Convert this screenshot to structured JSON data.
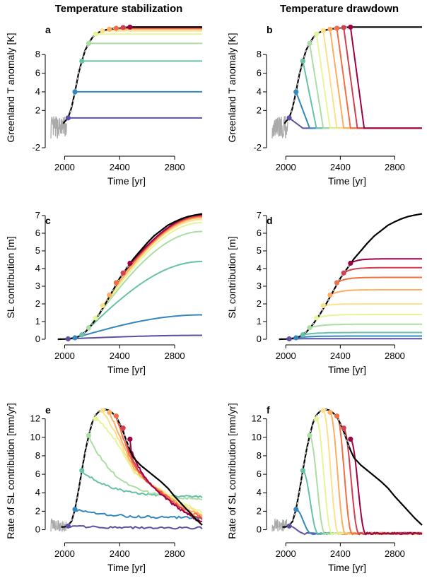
{
  "figure": {
    "col_titles": [
      "Temperature stabilization",
      "Temperature drawdown"
    ],
    "scenario_colors": [
      "#5E4FA2",
      "#3288BD",
      "#66C2A5",
      "#ABDDA4",
      "#E6F598",
      "#FEE08B",
      "#FDAE61",
      "#F46D43",
      "#D53E4F",
      "#9E0142"
    ],
    "baseline_color": "#000000",
    "historical_color": "#AAAAAA",
    "scenario_start_years": [
      2025,
      2075,
      2125,
      2175,
      2225,
      2275,
      2325,
      2375,
      2425,
      2475
    ]
  },
  "chart_data": [
    {
      "type": "line",
      "letter": "a",
      "column": 0,
      "mode": "stab",
      "xlabel": "Time [yr]",
      "ylabel": "Greenland T anomaly [K]",
      "xlim": [
        1900,
        3000
      ],
      "ylim": [
        -2.3,
        11.2
      ],
      "xticks": [
        "2000",
        "2400",
        "2800"
      ],
      "yticks": [
        "-2",
        "2",
        "4",
        "6",
        "8"
      ],
      "baseline": {
        "x": [
          1990,
          2000,
          2025,
          2050,
          2075,
          2100,
          2125,
          2150,
          2175,
          2200,
          2225,
          2250,
          2275,
          2300,
          2325,
          2350,
          2375,
          2400,
          2425,
          2450,
          2475,
          2500,
          3000
        ],
        "y": [
          0.6,
          0.8,
          1.2,
          2.3,
          4.0,
          5.9,
          7.3,
          8.5,
          9.2,
          9.8,
          10.2,
          10.4,
          10.55,
          10.65,
          10.72,
          10.78,
          10.82,
          10.86,
          10.9,
          10.92,
          10.95,
          10.95,
          10.95
        ]
      },
      "scenario_values": [
        1.2,
        4.0,
        7.3,
        9.2,
        10.2,
        10.55,
        10.72,
        10.82,
        10.9,
        10.95
      ],
      "historical": {
        "x_start": 1900,
        "x_end": 2015,
        "level": 0.2,
        "amp": 1.2
      }
    },
    {
      "type": "line",
      "letter": "b",
      "column": 1,
      "mode": "draw",
      "xlabel": "Time [yr]",
      "ylabel": "Greenland T anomaly [K]",
      "xlim": [
        1900,
        3000
      ],
      "ylim": [
        -2.3,
        11.2
      ],
      "xticks": [
        "2000",
        "2400",
        "2800"
      ],
      "yticks": [
        "-2",
        "2",
        "4",
        "6",
        "8"
      ],
      "baseline": {
        "x": [
          1990,
          2000,
          2025,
          2050,
          2075,
          2100,
          2125,
          2150,
          2175,
          2200,
          2225,
          2250,
          2275,
          2300,
          2325,
          2350,
          2375,
          2400,
          2425,
          2450,
          2475,
          2500,
          3000
        ],
        "y": [
          0.6,
          0.8,
          1.2,
          2.3,
          4.0,
          5.9,
          7.3,
          8.5,
          9.2,
          9.8,
          10.2,
          10.4,
          10.55,
          10.65,
          10.72,
          10.78,
          10.82,
          10.86,
          10.9,
          10.92,
          10.95,
          10.95,
          10.95
        ]
      },
      "scenario_values": [
        1.2,
        4.0,
        7.3,
        9.2,
        10.2,
        10.55,
        10.72,
        10.82,
        10.9,
        10.95
      ],
      "drawdown": {
        "duration": 100,
        "floor": 0.1
      },
      "historical": {
        "x_start": 1900,
        "x_end": 2015,
        "level": 0.2,
        "amp": 1.2
      }
    },
    {
      "type": "line",
      "letter": "c",
      "column": 0,
      "mode": "stab",
      "xlabel": "Time [yr]",
      "ylabel": "SL contribution [m]",
      "xlim": [
        1900,
        3000
      ],
      "ylim": [
        0,
        7
      ],
      "xticks": [
        "2000",
        "2400",
        "2800"
      ],
      "yticks": [
        "0",
        "1",
        "2",
        "3",
        "4",
        "5",
        "6",
        "7"
      ],
      "baseline": {
        "x": [
          1950,
          2000,
          2050,
          2100,
          2150,
          2200,
          2250,
          2300,
          2350,
          2400,
          2450,
          2500,
          2550,
          2600,
          2650,
          2700,
          2750,
          2800,
          2850,
          2900,
          2950,
          3000
        ],
        "y": [
          0.0,
          0.01,
          0.05,
          0.15,
          0.4,
          0.85,
          1.4,
          2.05,
          2.75,
          3.45,
          4.0,
          4.55,
          5.0,
          5.45,
          5.85,
          6.15,
          6.45,
          6.65,
          6.82,
          6.95,
          7.03,
          7.1
        ]
      },
      "scenario_values": [
        0.02,
        0.08,
        0.25,
        0.65,
        1.2,
        1.9,
        2.5,
        3.2,
        3.75,
        4.3
      ],
      "scenario_end_values": [
        0.22,
        1.38,
        4.4,
        6.1,
        6.6,
        6.78,
        6.88,
        6.95,
        7.0,
        7.05
      ]
    },
    {
      "type": "line",
      "letter": "d",
      "column": 1,
      "mode": "draw",
      "xlabel": "Time [yr]",
      "ylabel": "SL contribution [m]",
      "xlim": [
        1900,
        3000
      ],
      "ylim": [
        0,
        7
      ],
      "xticks": [
        "2000",
        "2400",
        "2800"
      ],
      "yticks": [
        "0",
        "1",
        "2",
        "3",
        "4",
        "5",
        "6",
        "7"
      ],
      "baseline": {
        "x": [
          1950,
          2000,
          2050,
          2100,
          2150,
          2200,
          2250,
          2300,
          2350,
          2400,
          2450,
          2500,
          2550,
          2600,
          2650,
          2700,
          2750,
          2800,
          2850,
          2900,
          2950,
          3000
        ],
        "y": [
          0.0,
          0.01,
          0.05,
          0.15,
          0.4,
          0.85,
          1.4,
          2.05,
          2.75,
          3.45,
          4.0,
          4.55,
          5.0,
          5.45,
          5.85,
          6.15,
          6.45,
          6.65,
          6.82,
          6.95,
          7.03,
          7.1
        ]
      },
      "scenario_values": [
        0.02,
        0.08,
        0.25,
        0.65,
        1.2,
        1.9,
        2.5,
        3.2,
        3.75,
        4.3
      ],
      "scenario_end_values": [
        0.03,
        0.18,
        0.38,
        0.85,
        1.4,
        2.0,
        2.8,
        3.5,
        4.05,
        4.55
      ]
    },
    {
      "type": "line",
      "letter": "e",
      "column": 0,
      "mode": "stab",
      "xlabel": "Time [yr]",
      "ylabel": "Rate of SL contribution [mm/yr]",
      "xlim": [
        1900,
        3000
      ],
      "ylim": [
        -0.8,
        13.5
      ],
      "xticks": [
        "2000",
        "2400",
        "2800"
      ],
      "yticks": [
        "0",
        "2",
        "4",
        "6",
        "8",
        "10",
        "12"
      ],
      "baseline": {
        "x": [
          1975,
          2000,
          2025,
          2050,
          2075,
          2100,
          2125,
          2150,
          2175,
          2200,
          2225,
          2250,
          2275,
          2300,
          2325,
          2350,
          2375,
          2400,
          2425,
          2450,
          2475,
          2500,
          2550,
          2600,
          2650,
          2700,
          2750,
          2800,
          2850,
          2900,
          2950,
          3000
        ],
        "y": [
          0.3,
          0.3,
          0.5,
          0.9,
          2.2,
          4.2,
          6.4,
          8.5,
          10.2,
          11.6,
          12.4,
          12.8,
          13.0,
          13.0,
          12.9,
          12.6,
          12.2,
          11.5,
          10.6,
          9.6,
          8.6,
          7.8,
          7.0,
          6.4,
          5.8,
          5.2,
          4.5,
          3.6,
          2.8,
          2.0,
          1.2,
          0.5
        ]
      },
      "scenario_values": [
        0.4,
        2.2,
        6.4,
        10.2,
        12.0,
        12.9,
        12.7,
        12.3,
        11.0,
        9.8
      ],
      "scenario_end_values": [
        0.2,
        1.3,
        3.5,
        3.2,
        2.6,
        2.2,
        1.9,
        1.6,
        1.2,
        0.9
      ],
      "historical": {
        "x_start": 1900,
        "x_end": 2010,
        "level": 0.5,
        "amp": 0.7
      }
    },
    {
      "type": "line",
      "letter": "f",
      "column": 1,
      "mode": "draw",
      "xlabel": "Time [yr]",
      "ylabel": "Rate of SL contribution [mm/yr]",
      "xlim": [
        1900,
        3000
      ],
      "ylim": [
        -0.8,
        13.5
      ],
      "xticks": [
        "2000",
        "2400",
        "2800"
      ],
      "yticks": [
        "0",
        "2",
        "4",
        "6",
        "8",
        "10",
        "12"
      ],
      "baseline": {
        "x": [
          1975,
          2000,
          2025,
          2050,
          2075,
          2100,
          2125,
          2150,
          2175,
          2200,
          2225,
          2250,
          2275,
          2300,
          2325,
          2350,
          2375,
          2400,
          2425,
          2450,
          2475,
          2500,
          2550,
          2600,
          2650,
          2700,
          2750,
          2800,
          2850,
          2900,
          2950,
          3000
        ],
        "y": [
          0.3,
          0.3,
          0.5,
          0.9,
          2.2,
          4.2,
          6.4,
          8.5,
          10.2,
          11.6,
          12.4,
          12.8,
          13.0,
          13.0,
          12.9,
          12.6,
          12.2,
          11.5,
          10.6,
          9.6,
          8.6,
          7.8,
          7.0,
          6.4,
          5.8,
          5.2,
          4.5,
          3.6,
          2.8,
          2.0,
          1.2,
          0.5
        ]
      },
      "scenario_values": [
        0.4,
        2.2,
        6.4,
        10.2,
        12.0,
        12.9,
        12.7,
        12.3,
        11.0,
        9.8
      ],
      "drawdown": {
        "duration": 110,
        "floor": -0.4
      },
      "historical": {
        "x_start": 1900,
        "x_end": 2010,
        "level": 0.5,
        "amp": 0.7
      }
    }
  ]
}
